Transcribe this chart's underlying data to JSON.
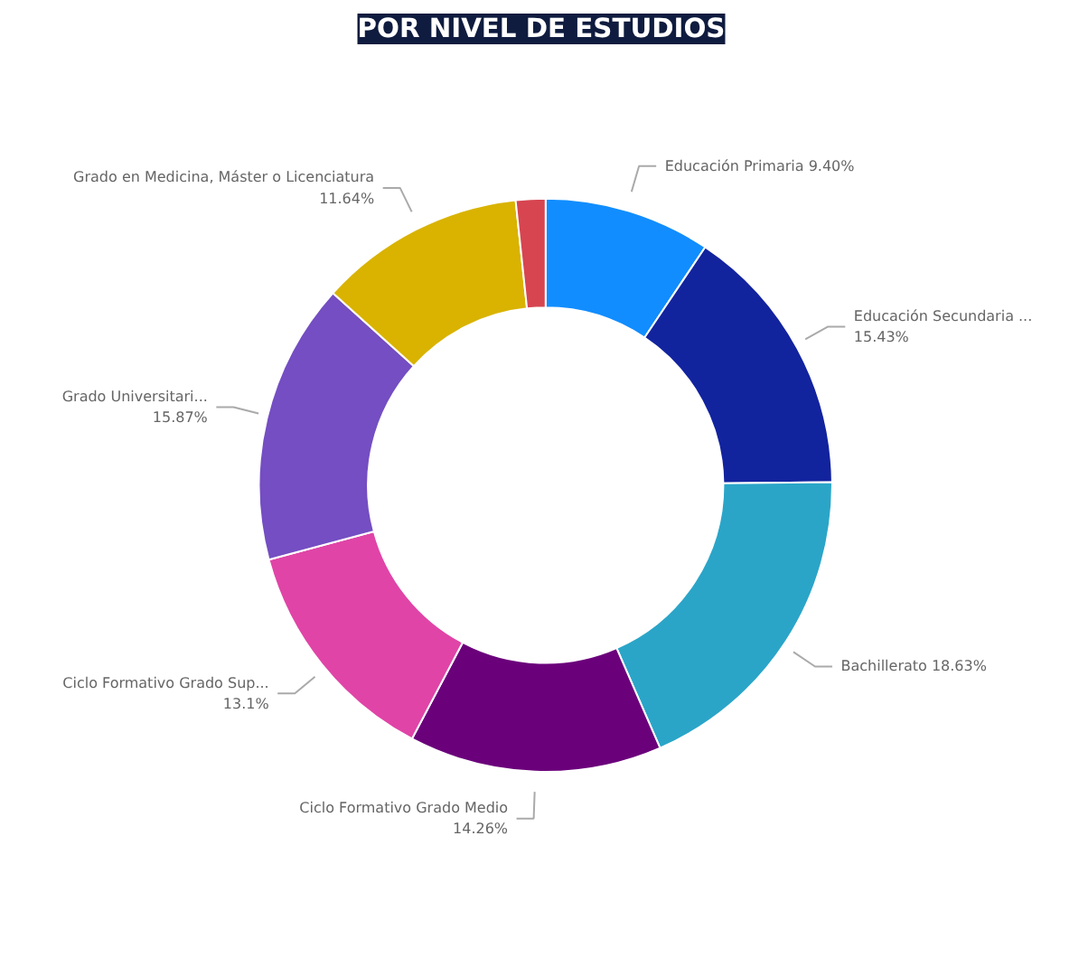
{
  "chart_data": {
    "type": "donut",
    "title": "POR NIVEL DE ESTUDIOS",
    "categories": [
      "Educación Primaria",
      "Educación Secundaria ...",
      "Bachillerato",
      "Ciclo Formativo Grado Medio",
      "Ciclo Formativo Grado Sup...",
      "Grado Universitari...",
      "Grado en Medicina, Máster o Licenciatura",
      null
    ],
    "values": [
      9.4,
      15.43,
      18.63,
      14.26,
      13.1,
      15.87,
      11.64,
      1.67
    ],
    "value_labels": [
      "9.40%",
      "15.43%",
      "18.63%",
      "14.26%",
      "13.1%",
      "15.87%",
      "11.64%",
      null
    ],
    "colors": [
      "#118dff",
      "#12239e",
      "#2aa5c8",
      "#6b007b",
      "#e044a7",
      "#744ec2",
      "#d9b300",
      "#d64550"
    ],
    "legend": false
  }
}
